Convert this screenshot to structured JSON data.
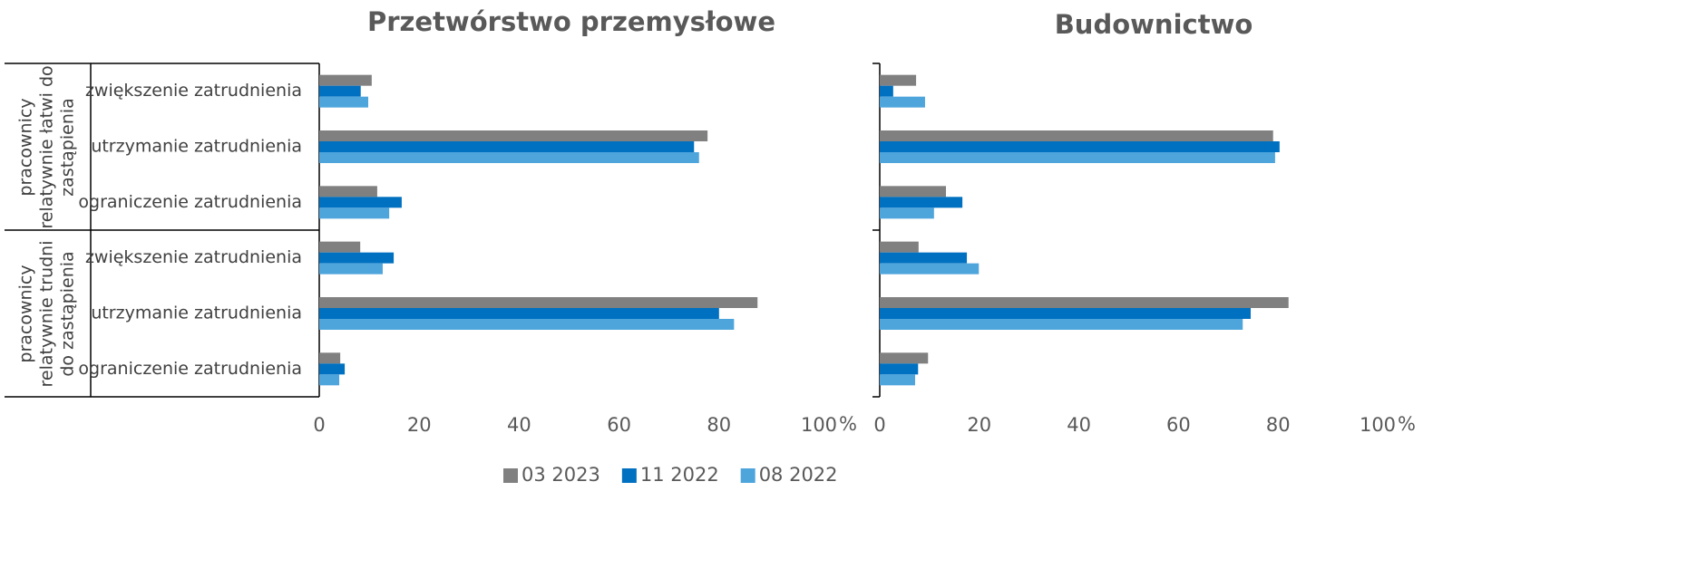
{
  "chart_data": [
    {
      "type": "bar",
      "orientation": "horizontal",
      "title": "Przetwórstwo przemysłowe",
      "xlabel": "%",
      "groups": [
        "pracownicy relatywnie łatwi do zastąpienia",
        "pracownicy relatywnie trudni do zastąpienia"
      ],
      "categories": [
        "zwiększenie zatrudnienia",
        "utrzymanie zatrudnienia",
        "ograniczenie zatrudnienia",
        "zwiększenie zatrudnienia",
        "utrzymanie zatrudnienia",
        "ograniczenie zatrudnienia"
      ],
      "xlim": [
        0,
        100
      ],
      "xticks": [
        0,
        20,
        40,
        60,
        80,
        100
      ],
      "series": [
        {
          "name": "03 2023",
          "color": "#808080",
          "values": [
            10.5,
            77.7,
            11.6,
            8.2,
            87.7,
            4.2
          ]
        },
        {
          "name": "11 2022",
          "color": "#0070c0",
          "values": [
            8.3,
            75,
            16.5,
            14.9,
            80,
            5.1
          ]
        },
        {
          "name": "08 2022",
          "color": "#4ea5dc",
          "values": [
            9.8,
            76,
            14,
            12.7,
            83,
            4
          ]
        }
      ]
    },
    {
      "type": "bar",
      "orientation": "horizontal",
      "title": "Budownictwo",
      "xlabel": "%",
      "xlim": [
        0,
        100
      ],
      "xticks": [
        0,
        20,
        40,
        60,
        80,
        100
      ],
      "series": [
        {
          "name": "03 2023",
          "color": "#808080",
          "values": [
            7.3,
            79,
            13.3,
            7.8,
            82.1,
            9.7
          ]
        },
        {
          "name": "11 2022",
          "color": "#0070c0",
          "values": [
            2.7,
            80.3,
            16.6,
            17.5,
            74.5,
            7.7
          ]
        },
        {
          "name": "08 2022",
          "color": "#4ea5dc",
          "values": [
            9.1,
            79.4,
            10.9,
            19.9,
            72.9,
            7.1
          ]
        }
      ]
    }
  ]
}
